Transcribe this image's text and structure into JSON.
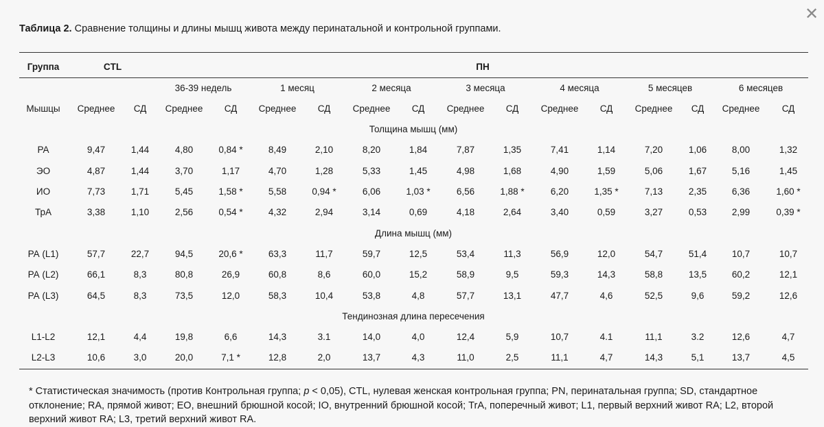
{
  "close_icon": "close-icon",
  "title": {
    "bold": "Таблица 2.",
    "text": " Сравнение толщины и длины мышц живота между перинатальной и контрольной группами."
  },
  "table": {
    "group_label": "Группа",
    "ctl_label": "CTL",
    "pn_label": "ПН",
    "periods": [
      "36-39 недель",
      "1 месяц",
      "2 месяца",
      "3 месяца",
      "4 месяца",
      "5 месяцев",
      "6 месяцев"
    ],
    "muscles_label": "Мышцы",
    "mean_label": "Среднее",
    "sd_label": "СД",
    "sections": [
      {
        "title": "Толщина мышц (мм)",
        "rows": [
          {
            "label": "РА",
            "values": [
              "9,47",
              "1,44",
              "4,80",
              "0,84 *",
              "8,49",
              "2,10",
              "8,20",
              "1,84",
              "7,87",
              "1,35",
              "7,41",
              "1,14",
              "7,20",
              "1,06",
              "8,00",
              "1,32"
            ]
          },
          {
            "label": "ЭО",
            "values": [
              "4,87",
              "1,44",
              "3,70",
              "1,17",
              "4,70",
              "1,28",
              "5,33",
              "1,45",
              "4,98",
              "1,68",
              "4,90",
              "1,59",
              "5,06",
              "1,67",
              "5,16",
              "1,45"
            ]
          },
          {
            "label": "ИО",
            "values": [
              "7,73",
              "1,71",
              "5,45",
              "1,58 *",
              "5,58",
              "0,94 *",
              "6,06",
              "1,03 *",
              "6,56",
              "1,88 *",
              "6,20",
              "1,35 *",
              "7,13",
              "2,35",
              "6,36",
              "1,60 *"
            ]
          },
          {
            "label": "ТрА",
            "values": [
              "3,38",
              "1,10",
              "2,56",
              "0,54 *",
              "4,32",
              "2,94",
              "3,14",
              "0,69",
              "4,18",
              "2,64",
              "3,40",
              "0,59",
              "3,27",
              "0,53",
              "2,99",
              "0,39 *"
            ]
          }
        ]
      },
      {
        "title": "Длина мышц (мм)",
        "rows": [
          {
            "label": "РА (L1)",
            "values": [
              "57,7",
              "22,7",
              "94,5",
              "20,6 *",
              "63,3",
              "11,7",
              "59,7",
              "12,5",
              "53,4",
              "11,3",
              "56,9",
              "12,0",
              "54,7",
              "51,4",
              "10,7",
              "10,7"
            ]
          },
          {
            "label": "РА (L2)",
            "values": [
              "66,1",
              "8,3",
              "80,8",
              "26,9",
              "60,8",
              "8,6",
              "60,0",
              "15,2",
              "58,9",
              "9,5",
              "59,3",
              "14,3",
              "58,8",
              "13,5",
              "60,2",
              "12,1"
            ]
          },
          {
            "label": "РА (L3)",
            "values": [
              "64,5",
              "8,3",
              "73,5",
              "12,0",
              "58,3",
              "10,4",
              "53,8",
              "4,8",
              "57,7",
              "13,1",
              "47,7",
              "4,6",
              "52,5",
              "9,6",
              "59,2",
              "12,6"
            ]
          }
        ]
      },
      {
        "title": "Тендинозная длина пересечения",
        "rows": [
          {
            "label": "L1-L2",
            "values": [
              "12,1",
              "4,4",
              "19,8",
              "6,6",
              "14,3",
              "3.1",
              "14,0",
              "4,0",
              "12,4",
              "5,9",
              "10,7",
              "4.1",
              "11,1",
              "3.2",
              "12,6",
              "4,7"
            ]
          },
          {
            "label": "L2-L3",
            "values": [
              "10,6",
              "3,0",
              "20,0",
              "7,1 *",
              "12,8",
              "2,0",
              "13,7",
              "4,3",
              "11,0",
              "2,5",
              "11,1",
              "4,7",
              "14,3",
              "5,1",
              "13,7",
              "4,5"
            ]
          }
        ]
      }
    ]
  },
  "footnote": {
    "part1": "* Статистическая значимость (против Контрольная группа; ",
    "p": "p",
    "part2": " < 0,05), CTL, нулевая женская контрольная группа; PN, перинатальная группа; SD, стандартное отклонение; RA, прямой живот; EO, внешний брюшной косой; IO, внутренний брюшной косой; TrA, поперечный живот; L1, первый верхний живот RA; L2, второй верхний живот RA; L3, третий верхний живот RA."
  }
}
